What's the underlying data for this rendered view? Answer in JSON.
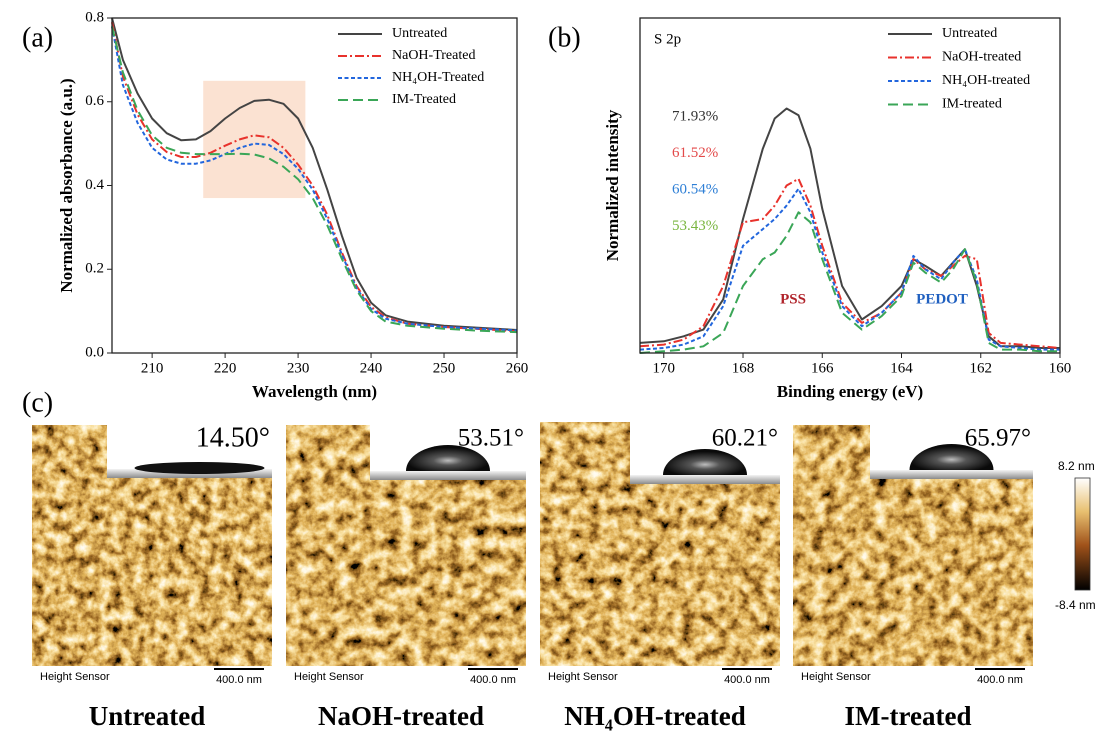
{
  "chart_data": [
    {
      "type": "line",
      "panel_label": "(a)",
      "x_label": "Wavelength (nm)",
      "y_label": "Normalized absorbance (a.u.)",
      "xlim": [
        204.5,
        260
      ],
      "ylim": [
        0,
        0.8
      ],
      "xticks": [
        210,
        220,
        230,
        240,
        250,
        260
      ],
      "yticks": [
        {
          "value": 0,
          "label": "0.0"
        },
        0.2,
        0.4,
        0.6,
        0.8
      ],
      "highlight": {
        "x": [
          217,
          231
        ],
        "y": [
          0.37,
          0.65
        ],
        "color": "#fbe2d2"
      },
      "x": [
        204.5,
        206,
        208,
        210,
        212,
        214,
        216,
        218,
        220,
        222,
        224,
        226,
        228,
        230,
        232,
        234,
        236,
        238,
        240,
        242,
        245,
        250,
        255,
        260
      ],
      "series": [
        {
          "name": "Untreated",
          "color": "#444444",
          "linestyle": "solid",
          "values": [
            0.8,
            0.7,
            0.62,
            0.56,
            0.525,
            0.508,
            0.51,
            0.53,
            0.56,
            0.585,
            0.602,
            0.605,
            0.595,
            0.56,
            0.49,
            0.39,
            0.28,
            0.18,
            0.12,
            0.09,
            0.075,
            0.065,
            0.06,
            0.055
          ]
        },
        {
          "name": "NaOH-Treated",
          "color": "#e8322c",
          "linestyle": "dashdot",
          "values": [
            0.79,
            0.66,
            0.57,
            0.51,
            0.48,
            0.468,
            0.468,
            0.478,
            0.495,
            0.51,
            0.52,
            0.515,
            0.49,
            0.45,
            0.4,
            0.33,
            0.24,
            0.16,
            0.11,
            0.085,
            0.07,
            0.062,
            0.057,
            0.052
          ]
        },
        {
          "name": "NH₄OH-Treated",
          "color": "#2266dd",
          "linestyle": "dashed",
          "values": [
            0.78,
            0.64,
            0.55,
            0.49,
            0.462,
            0.452,
            0.452,
            0.46,
            0.475,
            0.49,
            0.5,
            0.497,
            0.475,
            0.44,
            0.39,
            0.32,
            0.235,
            0.155,
            0.105,
            0.082,
            0.07,
            0.062,
            0.058,
            0.054
          ]
        },
        {
          "name": "IM-Treated",
          "color": "#3aa657",
          "linestyle": "longdash",
          "values": [
            0.78,
            0.67,
            0.58,
            0.52,
            0.49,
            0.478,
            0.475,
            0.475,
            0.475,
            0.476,
            0.474,
            0.465,
            0.445,
            0.415,
            0.37,
            0.305,
            0.225,
            0.15,
            0.1,
            0.075,
            0.065,
            0.058,
            0.053,
            0.05
          ]
        }
      ]
    },
    {
      "type": "line",
      "panel_label": "(b)",
      "title": "S 2p",
      "x_label": "Binding energy  (eV)",
      "y_label": "Normalized intensity",
      "xlim": [
        170.6,
        160
      ],
      "ylim": [
        0,
        1
      ],
      "xticks": [
        170,
        168,
        166,
        164,
        162,
        160
      ],
      "annotations": [
        {
          "text": "71.93%",
          "color": "#333333"
        },
        {
          "text": "61.52%",
          "color": "#e34a4a"
        },
        {
          "text": "60.54%",
          "color": "#2e7fd6"
        },
        {
          "text": "53.43%",
          "color": "#7ab640"
        }
      ],
      "peak_labels": [
        {
          "text": "PSS",
          "color": "#b0232a"
        },
        {
          "text": "PEDOT",
          "color": "#2060c0"
        }
      ],
      "x": [
        170.6,
        170,
        169.5,
        169,
        168.5,
        168,
        167.5,
        167.2,
        166.9,
        166.6,
        166.3,
        166,
        165.5,
        165,
        164.5,
        164,
        163.7,
        163.4,
        163,
        162.7,
        162.4,
        162.1,
        161.8,
        161.5,
        161,
        160.5,
        160
      ],
      "series": [
        {
          "name": "Untreated",
          "color": "#444444",
          "linestyle": "solid",
          "values": [
            0.03,
            0.035,
            0.05,
            0.07,
            0.16,
            0.4,
            0.61,
            0.7,
            0.73,
            0.71,
            0.61,
            0.43,
            0.2,
            0.1,
            0.14,
            0.2,
            0.28,
            0.26,
            0.23,
            0.27,
            0.31,
            0.2,
            0.05,
            0.02,
            0.02,
            0.015,
            0.015
          ]
        },
        {
          "name": "NaOH-treated",
          "color": "#e8322c",
          "linestyle": "dashdot",
          "values": [
            0.02,
            0.025,
            0.04,
            0.08,
            0.2,
            0.39,
            0.4,
            0.44,
            0.5,
            0.52,
            0.44,
            0.32,
            0.15,
            0.09,
            0.12,
            0.18,
            0.28,
            0.25,
            0.23,
            0.26,
            0.29,
            0.28,
            0.06,
            0.03,
            0.025,
            0.02,
            0.015
          ]
        },
        {
          "name": "NH₄OH-treated",
          "color": "#2266dd",
          "linestyle": "dashed",
          "values": [
            0.01,
            0.015,
            0.025,
            0.05,
            0.14,
            0.32,
            0.37,
            0.4,
            0.44,
            0.49,
            0.42,
            0.3,
            0.14,
            0.08,
            0.12,
            0.18,
            0.29,
            0.25,
            0.22,
            0.27,
            0.31,
            0.22,
            0.04,
            0.02,
            0.015,
            0.01,
            0.01
          ]
        },
        {
          "name": "IM-treated",
          "color": "#3aa657",
          "linestyle": "longdash",
          "values": [
            0.0,
            0.005,
            0.01,
            0.02,
            0.06,
            0.2,
            0.28,
            0.3,
            0.35,
            0.42,
            0.39,
            0.28,
            0.12,
            0.07,
            0.11,
            0.17,
            0.27,
            0.24,
            0.21,
            0.25,
            0.31,
            0.21,
            0.03,
            0.01,
            0.01,
            0.005,
            0.005
          ]
        }
      ]
    }
  ],
  "panel_c": {
    "label": "(c)",
    "samples": [
      {
        "contact_angle": "14.50°",
        "name": "Untreated"
      },
      {
        "contact_angle": "53.51°",
        "name": "NaOH-treated"
      },
      {
        "contact_angle": "60.21°",
        "name": "NH₄OH-treated"
      },
      {
        "contact_angle": "65.97°",
        "name": "IM-treated"
      }
    ],
    "sensor_label": "Height Sensor",
    "scale_bar": "400.0 nm",
    "colorbar": {
      "max": "8.2 nm",
      "min": "-8.4 nm"
    }
  }
}
